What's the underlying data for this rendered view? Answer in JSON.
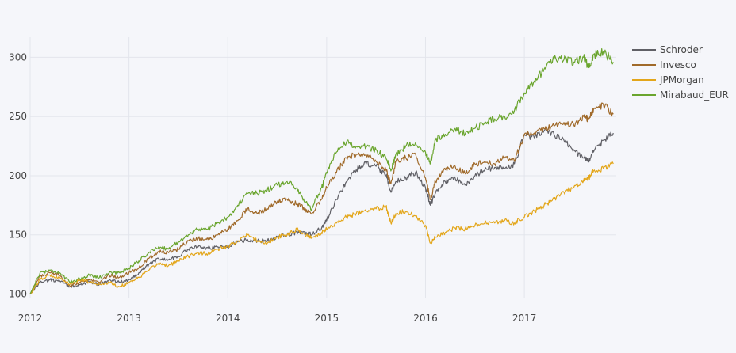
{
  "chart_data": {
    "type": "line",
    "title": "",
    "xlabel": "",
    "ylabel": "",
    "x_ticks": [
      "2012",
      "2013",
      "2014",
      "2015",
      "2016",
      "2017"
    ],
    "y_ticks": [
      "100",
      "150",
      "200",
      "250",
      "300"
    ],
    "xlim": [
      2012.0,
      2017.93
    ],
    "ylim": [
      97,
      317
    ],
    "grid": true,
    "legend_position": "right",
    "series": [
      {
        "name": "Schroder",
        "color": "#606066",
        "x": [
          2012.0,
          2012.1,
          2012.2,
          2012.3,
          2012.4,
          2012.5,
          2012.6,
          2012.7,
          2012.8,
          2012.9,
          2013.0,
          2013.1,
          2013.2,
          2013.3,
          2013.4,
          2013.5,
          2013.6,
          2013.7,
          2013.8,
          2013.9,
          2014.0,
          2014.1,
          2014.2,
          2014.3,
          2014.4,
          2014.5,
          2014.6,
          2014.7,
          2014.78,
          2014.85,
          2014.95,
          2015.0,
          2015.1,
          2015.2,
          2015.3,
          2015.4,
          2015.5,
          2015.6,
          2015.65,
          2015.7,
          2015.8,
          2015.9,
          2016.0,
          2016.05,
          2016.1,
          2016.2,
          2016.3,
          2016.4,
          2016.5,
          2016.6,
          2016.7,
          2016.8,
          2016.9,
          2017.0,
          2017.1,
          2017.2,
          2017.3,
          2017.4,
          2017.5,
          2017.6,
          2017.65,
          2017.7,
          2017.8,
          2017.9
        ],
        "values": [
          100,
          110,
          112,
          111,
          106,
          108,
          110,
          108,
          112,
          110,
          112,
          118,
          125,
          130,
          129,
          132,
          138,
          140,
          139,
          140,
          140,
          144,
          146,
          145,
          145,
          148,
          150,
          152,
          152,
          150,
          156,
          162,
          180,
          195,
          205,
          210,
          208,
          200,
          186,
          195,
          198,
          203,
          190,
          175,
          185,
          195,
          198,
          192,
          200,
          205,
          207,
          206,
          210,
          235,
          232,
          238,
          235,
          230,
          222,
          215,
          213,
          220,
          230,
          236
        ]
      },
      {
        "name": "Invesco",
        "color": "#a06a2a",
        "x": [
          2012.0,
          2012.1,
          2012.2,
          2012.3,
          2012.4,
          2012.5,
          2012.6,
          2012.7,
          2012.8,
          2012.9,
          2013.0,
          2013.1,
          2013.2,
          2013.3,
          2013.4,
          2013.5,
          2013.6,
          2013.7,
          2013.8,
          2013.9,
          2014.0,
          2014.1,
          2014.2,
          2014.3,
          2014.4,
          2014.5,
          2014.6,
          2014.7,
          2014.78,
          2014.85,
          2014.95,
          2015.0,
          2015.1,
          2015.2,
          2015.3,
          2015.4,
          2015.5,
          2015.6,
          2015.65,
          2015.7,
          2015.8,
          2015.9,
          2016.0,
          2016.05,
          2016.1,
          2016.2,
          2016.3,
          2016.4,
          2016.5,
          2016.6,
          2016.7,
          2016.8,
          2016.9,
          2017.0,
          2017.1,
          2017.2,
          2017.3,
          2017.4,
          2017.5,
          2017.6,
          2017.65,
          2017.7,
          2017.8,
          2017.9
        ],
        "values": [
          100,
          115,
          118,
          116,
          107,
          110,
          112,
          110,
          116,
          114,
          118,
          122,
          130,
          136,
          135,
          138,
          145,
          147,
          146,
          150,
          155,
          162,
          172,
          168,
          172,
          178,
          180,
          176,
          172,
          168,
          180,
          190,
          203,
          215,
          218,
          218,
          212,
          205,
          193,
          212,
          215,
          218,
          198,
          180,
          195,
          205,
          208,
          202,
          210,
          212,
          210,
          215,
          212,
          235,
          236,
          240,
          242,
          245,
          243,
          250,
          248,
          256,
          260,
          252
        ]
      },
      {
        "name": "JPMorgan",
        "color": "#e3a61a",
        "x": [
          2012.0,
          2012.1,
          2012.2,
          2012.3,
          2012.4,
          2012.5,
          2012.6,
          2012.7,
          2012.8,
          2012.9,
          2013.0,
          2013.1,
          2013.2,
          2013.3,
          2013.4,
          2013.5,
          2013.6,
          2013.7,
          2013.8,
          2013.9,
          2014.0,
          2014.1,
          2014.2,
          2014.3,
          2014.4,
          2014.5,
          2014.6,
          2014.7,
          2014.78,
          2014.85,
          2014.95,
          2015.0,
          2015.1,
          2015.2,
          2015.3,
          2015.4,
          2015.5,
          2015.6,
          2015.65,
          2015.7,
          2015.8,
          2015.9,
          2016.0,
          2016.05,
          2016.1,
          2016.2,
          2016.3,
          2016.4,
          2016.5,
          2016.6,
          2016.7,
          2016.8,
          2016.9,
          2017.0,
          2017.1,
          2017.2,
          2017.3,
          2017.4,
          2017.5,
          2017.6,
          2017.65,
          2017.7,
          2017.8,
          2017.9
        ],
        "values": [
          100,
          112,
          116,
          114,
          108,
          112,
          110,
          108,
          110,
          106,
          110,
          114,
          120,
          126,
          124,
          128,
          132,
          135,
          134,
          138,
          140,
          145,
          150,
          145,
          143,
          148,
          150,
          155,
          150,
          148,
          152,
          155,
          160,
          165,
          168,
          170,
          172,
          174,
          160,
          168,
          170,
          166,
          158,
          143,
          148,
          152,
          156,
          155,
          158,
          160,
          160,
          162,
          160,
          165,
          170,
          175,
          180,
          186,
          190,
          196,
          198,
          204,
          206,
          210
        ]
      },
      {
        "name": "Mirabaud_EUR",
        "color": "#6aa52e",
        "x": [
          2012.0,
          2012.1,
          2012.2,
          2012.3,
          2012.4,
          2012.5,
          2012.6,
          2012.7,
          2012.8,
          2012.9,
          2013.0,
          2013.1,
          2013.2,
          2013.3,
          2013.4,
          2013.5,
          2013.6,
          2013.7,
          2013.8,
          2013.9,
          2014.0,
          2014.1,
          2014.2,
          2014.3,
          2014.4,
          2014.5,
          2014.6,
          2014.7,
          2014.78,
          2014.85,
          2014.95,
          2015.0,
          2015.1,
          2015.2,
          2015.3,
          2015.4,
          2015.5,
          2015.6,
          2015.65,
          2015.7,
          2015.8,
          2015.9,
          2016.0,
          2016.05,
          2016.1,
          2016.2,
          2016.3,
          2016.4,
          2016.5,
          2016.6,
          2016.7,
          2016.8,
          2016.9,
          2017.0,
          2017.1,
          2017.2,
          2017.3,
          2017.4,
          2017.5,
          2017.6,
          2017.65,
          2017.7,
          2017.8,
          2017.9
        ],
        "values": [
          100,
          118,
          120,
          118,
          110,
          113,
          116,
          114,
          118,
          118,
          122,
          128,
          135,
          140,
          138,
          144,
          150,
          155,
          155,
          160,
          165,
          175,
          185,
          185,
          188,
          192,
          195,
          190,
          178,
          172,
          190,
          202,
          220,
          228,
          225,
          224,
          222,
          215,
          204,
          218,
          225,
          228,
          220,
          210,
          230,
          235,
          240,
          235,
          240,
          245,
          248,
          250,
          255,
          270,
          280,
          290,
          298,
          298,
          296,
          300,
          292,
          302,
          305,
          296
        ]
      }
    ]
  }
}
